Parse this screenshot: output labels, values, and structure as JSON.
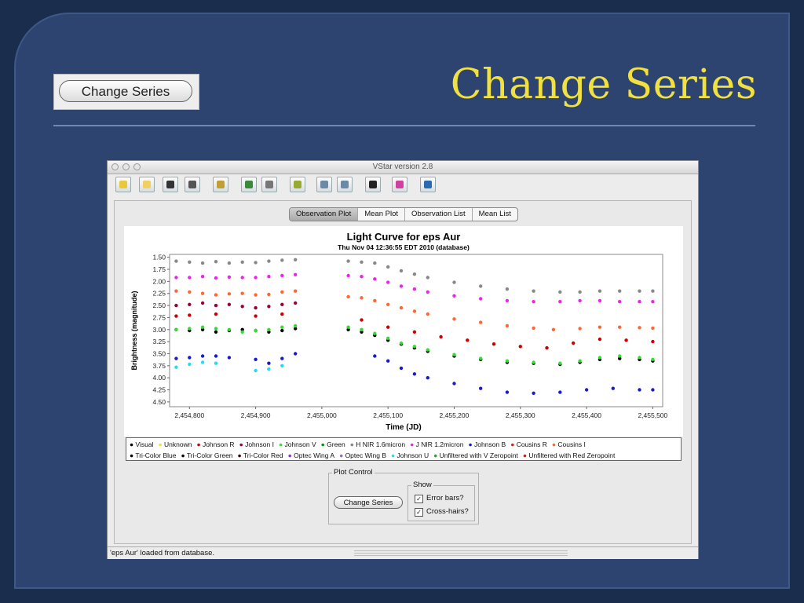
{
  "slide": {
    "title": "Change Series",
    "thumbnail_button": "Change Series"
  },
  "window": {
    "title": "VStar version 2.8",
    "toolbar_icons": [
      "new-star-icon",
      "open-icon",
      "save-icon",
      "print-icon",
      "info-icon",
      "raw-data-icon",
      "phase-plot-icon",
      "mean-plot-icon",
      "zoom-in-icon",
      "zoom-out-icon",
      "filter-icon",
      "model-icon",
      "period-search-icon"
    ],
    "tabs": [
      "Observation Plot",
      "Mean Plot",
      "Observation List",
      "Mean List"
    ],
    "active_tab": "Observation Plot",
    "status": "'eps Aur' loaded from database."
  },
  "plot_control": {
    "legend": "Plot Control",
    "change_series_button": "Change Series",
    "show_legend": "Show",
    "error_bars_label": "Error bars?",
    "cross_hairs_label": "Cross-hairs?",
    "error_bars_checked": true,
    "cross_hairs_checked": true
  },
  "chart_data": {
    "type": "scatter",
    "title": "Light Curve for eps Aur",
    "subtitle": "Thu Nov 04 12:36:55 EDT 2010 (database)",
    "xlabel": "Time (JD)",
    "ylabel": "Brightness (magnitude)",
    "xlim": [
      2454770,
      2455515
    ],
    "ylim": [
      4.6,
      1.44
    ],
    "y_inverted": true,
    "x_ticks": [
      2454800,
      2454900,
      2455000,
      2455100,
      2455200,
      2455300,
      2455400,
      2455500
    ],
    "x_tick_labels": [
      "2,454,800",
      "2,454,900",
      "2,455,000",
      "2,455,100",
      "2,455,200",
      "2,455,300",
      "2,455,400",
      "2,455,500"
    ],
    "y_ticks": [
      1.5,
      1.75,
      2.0,
      2.25,
      2.5,
      2.75,
      3.0,
      3.25,
      3.5,
      3.75,
      4.0,
      4.25,
      4.5
    ],
    "y_tick_labels": [
      "1.50",
      "1.75",
      "2.00",
      "2.25",
      "2.50",
      "2.75",
      "3.00",
      "3.25",
      "3.50",
      "3.75",
      "4.00",
      "4.25",
      "4.50"
    ],
    "grid": false,
    "legend_position": "bottom",
    "legend": [
      {
        "name": "Visual",
        "color": "#000000"
      },
      {
        "name": "Unknown",
        "color": "#f0e040"
      },
      {
        "name": "Johnson R",
        "color": "#cc0000"
      },
      {
        "name": "Johnson I",
        "color": "#990033"
      },
      {
        "name": "Johnson V",
        "color": "#33dd33"
      },
      {
        "name": "Green",
        "color": "#009900"
      },
      {
        "name": "H NIR 1.6micron",
        "color": "#888888"
      },
      {
        "name": "J NIR 1.2micron",
        "color": "#ee22ee"
      },
      {
        "name": "Johnson B",
        "color": "#1a1acc"
      },
      {
        "name": "Cousins R",
        "color": "#dd2211"
      },
      {
        "name": "Cousins I",
        "color": "#ff6633"
      },
      {
        "name": "Tri-Color Blue",
        "color": "#000000"
      },
      {
        "name": "Tri-Color Green",
        "color": "#000000"
      },
      {
        "name": "Tri-Color Red",
        "color": "#330000"
      },
      {
        "name": "Optec Wing A",
        "color": "#8833dd"
      },
      {
        "name": "Optec Wing B",
        "color": "#9966cc"
      },
      {
        "name": "Johnson U",
        "color": "#22ddee"
      },
      {
        "name": "Unfiltered with V Zeropoint",
        "color": "#22aa22"
      },
      {
        "name": "Unfiltered with Red Zeropoint",
        "color": "#cc2222"
      }
    ],
    "series": [
      {
        "name": "H NIR 1.6micron",
        "color": "#888888",
        "points": [
          [
            2454780,
            1.58
          ],
          [
            2454800,
            1.6
          ],
          [
            2454820,
            1.62
          ],
          [
            2454840,
            1.59
          ],
          [
            2454860,
            1.62
          ],
          [
            2454880,
            1.6
          ],
          [
            2454900,
            1.61
          ],
          [
            2454920,
            1.58
          ],
          [
            2454940,
            1.56
          ],
          [
            2454960,
            1.55
          ],
          [
            2455040,
            1.58
          ],
          [
            2455060,
            1.6
          ],
          [
            2455080,
            1.62
          ],
          [
            2455100,
            1.7
          ],
          [
            2455120,
            1.78
          ],
          [
            2455140,
            1.85
          ],
          [
            2455160,
            1.92
          ],
          [
            2455200,
            2.02
          ],
          [
            2455240,
            2.1
          ],
          [
            2455280,
            2.16
          ],
          [
            2455320,
            2.2
          ],
          [
            2455360,
            2.22
          ],
          [
            2455390,
            2.22
          ],
          [
            2455420,
            2.2
          ],
          [
            2455450,
            2.2
          ],
          [
            2455480,
            2.2
          ],
          [
            2455500,
            2.2
          ]
        ]
      },
      {
        "name": "J NIR 1.2micron",
        "color": "#ee22ee",
        "points": [
          [
            2454780,
            1.92
          ],
          [
            2454800,
            1.92
          ],
          [
            2454820,
            1.9
          ],
          [
            2454840,
            1.93
          ],
          [
            2454860,
            1.91
          ],
          [
            2454880,
            1.92
          ],
          [
            2454900,
            1.92
          ],
          [
            2454920,
            1.9
          ],
          [
            2454940,
            1.88
          ],
          [
            2454960,
            1.86
          ],
          [
            2455040,
            1.88
          ],
          [
            2455060,
            1.9
          ],
          [
            2455080,
            1.95
          ],
          [
            2455100,
            2.02
          ],
          [
            2455120,
            2.1
          ],
          [
            2455140,
            2.16
          ],
          [
            2455160,
            2.22
          ],
          [
            2455200,
            2.3
          ],
          [
            2455240,
            2.36
          ],
          [
            2455280,
            2.4
          ],
          [
            2455320,
            2.42
          ],
          [
            2455360,
            2.42
          ],
          [
            2455390,
            2.4
          ],
          [
            2455420,
            2.4
          ],
          [
            2455450,
            2.42
          ],
          [
            2455480,
            2.42
          ],
          [
            2455500,
            2.42
          ]
        ]
      },
      {
        "name": "Cousins I",
        "color": "#ff6633",
        "points": [
          [
            2454780,
            2.2
          ],
          [
            2454800,
            2.22
          ],
          [
            2454820,
            2.25
          ],
          [
            2454840,
            2.28
          ],
          [
            2454860,
            2.26
          ],
          [
            2454880,
            2.25
          ],
          [
            2454900,
            2.28
          ],
          [
            2454920,
            2.27
          ],
          [
            2454940,
            2.22
          ],
          [
            2454960,
            2.2
          ],
          [
            2455040,
            2.32
          ],
          [
            2455060,
            2.34
          ],
          [
            2455080,
            2.4
          ],
          [
            2455100,
            2.48
          ],
          [
            2455120,
            2.55
          ],
          [
            2455140,
            2.62
          ],
          [
            2455160,
            2.68
          ],
          [
            2455200,
            2.78
          ],
          [
            2455240,
            2.85
          ],
          [
            2455280,
            2.92
          ],
          [
            2455320,
            2.97
          ],
          [
            2455350,
            3.0
          ],
          [
            2455390,
            2.98
          ],
          [
            2455420,
            2.95
          ],
          [
            2455450,
            2.95
          ],
          [
            2455480,
            2.96
          ],
          [
            2455500,
            2.97
          ]
        ]
      },
      {
        "name": "Johnson I",
        "color": "#990033",
        "points": [
          [
            2454780,
            2.5
          ],
          [
            2454800,
            2.48
          ],
          [
            2454820,
            2.45
          ],
          [
            2454840,
            2.5
          ],
          [
            2454860,
            2.48
          ],
          [
            2454880,
            2.52
          ],
          [
            2454900,
            2.55
          ],
          [
            2454920,
            2.52
          ],
          [
            2454940,
            2.48
          ],
          [
            2454960,
            2.45
          ]
        ]
      },
      {
        "name": "Johnson R",
        "color": "#cc0000",
        "points": [
          [
            2454780,
            2.72
          ],
          [
            2454800,
            2.7
          ],
          [
            2454840,
            2.68
          ],
          [
            2454900,
            2.72
          ],
          [
            2454940,
            2.68
          ],
          [
            2455060,
            2.8
          ],
          [
            2455100,
            2.95
          ],
          [
            2455140,
            3.05
          ],
          [
            2455180,
            3.15
          ],
          [
            2455220,
            3.22
          ],
          [
            2455260,
            3.3
          ],
          [
            2455300,
            3.35
          ],
          [
            2455340,
            3.38
          ],
          [
            2455380,
            3.28
          ],
          [
            2455420,
            3.2
          ],
          [
            2455460,
            3.22
          ],
          [
            2455500,
            3.25
          ]
        ]
      },
      {
        "name": "Visual",
        "color": "#000000",
        "points": [
          [
            2454780,
            3.0
          ],
          [
            2454800,
            3.02
          ],
          [
            2454820,
            3.0
          ],
          [
            2454840,
            3.05
          ],
          [
            2454860,
            3.02
          ],
          [
            2454880,
            3.0
          ],
          [
            2454900,
            3.02
          ],
          [
            2454920,
            3.05
          ],
          [
            2454940,
            3.02
          ],
          [
            2454960,
            2.98
          ],
          [
            2455040,
            3.0
          ],
          [
            2455060,
            3.05
          ],
          [
            2455080,
            3.12
          ],
          [
            2455100,
            3.22
          ],
          [
            2455120,
            3.3
          ],
          [
            2455140,
            3.38
          ],
          [
            2455160,
            3.45
          ],
          [
            2455200,
            3.55
          ],
          [
            2455240,
            3.62
          ],
          [
            2455280,
            3.68
          ],
          [
            2455320,
            3.7
          ],
          [
            2455360,
            3.72
          ],
          [
            2455390,
            3.68
          ],
          [
            2455420,
            3.62
          ],
          [
            2455450,
            3.6
          ],
          [
            2455480,
            3.62
          ],
          [
            2455500,
            3.65
          ]
        ]
      },
      {
        "name": "Johnson V",
        "color": "#33dd33",
        "points": [
          [
            2454780,
            3.0
          ],
          [
            2454800,
            2.98
          ],
          [
            2454820,
            2.95
          ],
          [
            2454840,
            2.98
          ],
          [
            2454860,
            3.0
          ],
          [
            2454880,
            3.05
          ],
          [
            2454900,
            3.02
          ],
          [
            2454920,
            3.0
          ],
          [
            2454940,
            2.95
          ],
          [
            2454960,
            2.92
          ],
          [
            2455040,
            2.95
          ],
          [
            2455060,
            3.0
          ],
          [
            2455080,
            3.08
          ],
          [
            2455100,
            3.18
          ],
          [
            2455120,
            3.28
          ],
          [
            2455140,
            3.35
          ],
          [
            2455160,
            3.42
          ],
          [
            2455200,
            3.52
          ],
          [
            2455240,
            3.6
          ],
          [
            2455280,
            3.65
          ],
          [
            2455320,
            3.68
          ],
          [
            2455360,
            3.7
          ],
          [
            2455390,
            3.65
          ],
          [
            2455420,
            3.58
          ],
          [
            2455450,
            3.55
          ],
          [
            2455480,
            3.58
          ],
          [
            2455500,
            3.62
          ]
        ]
      },
      {
        "name": "Johnson B",
        "color": "#1a1acc",
        "points": [
          [
            2454780,
            3.6
          ],
          [
            2454800,
            3.58
          ],
          [
            2454820,
            3.55
          ],
          [
            2454840,
            3.55
          ],
          [
            2454860,
            3.58
          ],
          [
            2454900,
            3.62
          ],
          [
            2454920,
            3.7
          ],
          [
            2454940,
            3.6
          ],
          [
            2454960,
            3.5
          ],
          [
            2455080,
            3.55
          ],
          [
            2455100,
            3.65
          ],
          [
            2455120,
            3.8
          ],
          [
            2455140,
            3.92
          ],
          [
            2455160,
            4.0
          ],
          [
            2455200,
            4.12
          ],
          [
            2455240,
            4.22
          ],
          [
            2455280,
            4.3
          ],
          [
            2455320,
            4.32
          ],
          [
            2455360,
            4.3
          ],
          [
            2455400,
            4.25
          ],
          [
            2455440,
            4.22
          ],
          [
            2455480,
            4.25
          ],
          [
            2455500,
            4.25
          ]
        ]
      },
      {
        "name": "Johnson U",
        "color": "#22ddee",
        "points": [
          [
            2454780,
            3.78
          ],
          [
            2454800,
            3.72
          ],
          [
            2454820,
            3.68
          ],
          [
            2454840,
            3.7
          ],
          [
            2454900,
            3.85
          ],
          [
            2454920,
            3.82
          ],
          [
            2454940,
            3.75
          ]
        ]
      }
    ]
  }
}
